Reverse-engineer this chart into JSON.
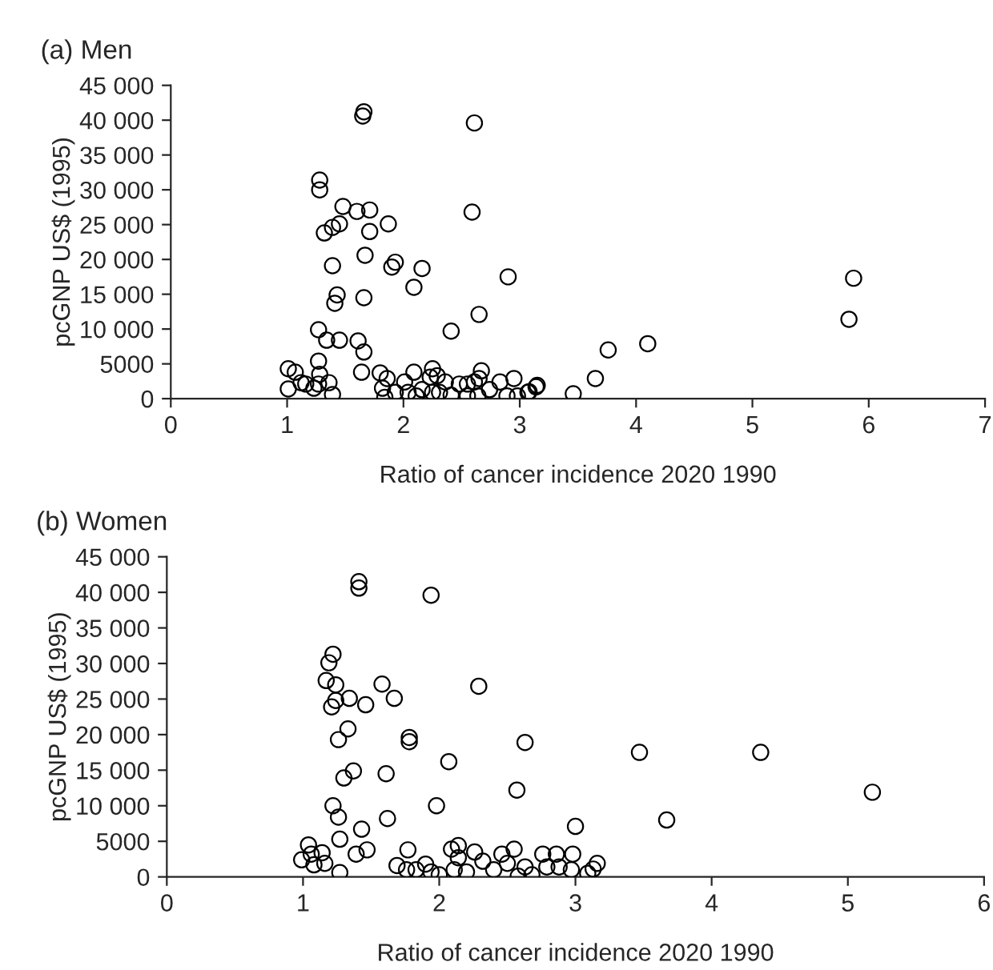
{
  "chart_data": [
    {
      "type": "scatter",
      "title": "(a) Men",
      "xlabel": "Ratio of cancer incidence 2020 1990",
      "ylabel": "pcGNP US$ (1995)",
      "marker": "circle",
      "grid": false,
      "xlim": [
        0,
        7
      ],
      "xticks": [
        0,
        1,
        2,
        3,
        4,
        5,
        6,
        7
      ],
      "ylim": [
        0,
        45000
      ],
      "yticks": [
        0,
        5000,
        {
          "value": 10000,
          "label": "10 000"
        },
        {
          "value": 15000,
          "label": "15 000"
        },
        {
          "value": 20000,
          "label": "20 000"
        },
        {
          "value": 25000,
          "label": "25 000"
        },
        {
          "value": 30000,
          "label": "30 000"
        },
        {
          "value": 35000,
          "label": "35 000"
        },
        {
          "value": 40000,
          "label": "40 000"
        },
        {
          "value": 45000,
          "label": "45 000"
        }
      ],
      "series": [
        {
          "color": "#000000",
          "x": [
            1.66,
            1.65,
            2.61,
            1.28,
            1.28,
            1.48,
            1.6,
            1.71,
            2.59,
            1.87,
            1.45,
            1.39,
            1.32,
            1.71,
            1.67,
            1.93,
            1.9,
            2.16,
            1.39,
            2.9,
            2.09,
            1.43,
            1.41,
            1.66,
            2.65,
            1.27,
            2.41,
            1.34,
            1.45,
            1.61,
            1.66,
            1.27,
            1.01,
            1.07,
            1.28,
            1.12,
            1.01,
            1.16,
            1.36,
            1.39,
            1.27,
            1.23,
            1.64,
            1.8,
            1.86,
            1.82,
            1.84,
            1.93,
            2.01,
            2.09,
            2.04,
            2.11,
            2.16,
            2.25,
            2.23,
            2.29,
            2.36,
            2.31,
            2.25,
            2.41,
            2.48,
            2.55,
            2.61,
            2.67,
            2.65,
            2.55,
            2.64,
            2.74,
            2.83,
            2.89,
            2.95,
            2.98,
            3.07,
            3.14,
            3.46,
            5.87,
            5.83,
            4.1,
            3.76,
            3.65,
            3.15,
            3.08
          ],
          "values": [
            41200,
            40600,
            39600,
            31400,
            30000,
            27600,
            26900,
            27100,
            26800,
            25100,
            25100,
            24600,
            23800,
            24000,
            20600,
            19600,
            18900,
            18700,
            19100,
            17500,
            16000,
            14900,
            13700,
            14500,
            12100,
            9900,
            9700,
            8400,
            8400,
            8300,
            6700,
            5400,
            4300,
            3800,
            3500,
            2300,
            1400,
            2100,
            2300,
            600,
            2100,
            1500,
            3800,
            3700,
            2900,
            1500,
            200,
            900,
            2400,
            3800,
            900,
            400,
            1300,
            4300,
            3100,
            3300,
            2400,
            900,
            900,
            500,
            2100,
            2100,
            2400,
            4000,
            2900,
            400,
            400,
            1300,
            2400,
            400,
            2900,
            400,
            900,
            1700,
            700,
            17300,
            11400,
            7900,
            7000,
            2900,
            1900,
            1000
          ]
        }
      ]
    },
    {
      "type": "scatter",
      "title": "(b) Women",
      "xlabel": "Ratio of cancer incidence 2020 1990",
      "ylabel": "pcGNP US$ (1995)",
      "marker": "circle",
      "grid": false,
      "xlim": [
        0,
        6
      ],
      "xticks": [
        0,
        1,
        2,
        3,
        4,
        5,
        6
      ],
      "ylim": [
        0,
        45000
      ],
      "yticks": [
        0,
        5000,
        {
          "value": 10000,
          "label": "10 000"
        },
        {
          "value": 15000,
          "label": "15 000"
        },
        {
          "value": 20000,
          "label": "20 000"
        },
        {
          "value": 25000,
          "label": "25 000"
        },
        {
          "value": 30000,
          "label": "30 000"
        },
        {
          "value": 35000,
          "label": "35 000"
        },
        {
          "value": 40000,
          "label": "40 000"
        },
        {
          "value": 45000,
          "label": "45 000"
        }
      ],
      "series": [
        {
          "color": "#000000",
          "x": [
            1.41,
            1.41,
            1.94,
            1.22,
            1.19,
            1.17,
            1.24,
            1.58,
            1.67,
            1.34,
            1.24,
            1.21,
            1.46,
            2.29,
            1.33,
            1.26,
            1.78,
            1.78,
            2.63,
            2.07,
            1.3,
            1.37,
            1.61,
            2.57,
            1.22,
            1.98,
            1.26,
            1.62,
            1.43,
            1.27,
            1.47,
            1.39,
            3.0,
            1.04,
            0.99,
            1.06,
            1.14,
            1.16,
            1.08,
            1.27,
            1.77,
            1.69,
            1.76,
            1.83,
            1.9,
            1.94,
            2.0,
            2.09,
            2.14,
            2.14,
            2.11,
            2.2,
            2.26,
            2.32,
            2.4,
            2.46,
            2.5,
            2.55,
            2.58,
            2.63,
            2.68,
            2.76,
            2.79,
            2.86,
            2.88,
            2.97,
            3.47,
            4.36,
            5.18,
            3.67,
            3.16,
            3.13,
            3.09,
            2.98
          ],
          "values": [
            41500,
            40600,
            39600,
            31300,
            30100,
            27600,
            27000,
            27100,
            25100,
            25100,
            24800,
            23900,
            24200,
            26800,
            20800,
            19300,
            19600,
            19000,
            18900,
            16200,
            13900,
            14900,
            14500,
            12200,
            10000,
            10000,
            8400,
            8200,
            6700,
            5300,
            3800,
            3200,
            7100,
            4500,
            2400,
            3200,
            3400,
            1900,
            1700,
            600,
            3800,
            1600,
            1000,
            1000,
            1800,
            700,
            300,
            3900,
            4400,
            2700,
            1000,
            700,
            3500,
            2200,
            1000,
            3200,
            1900,
            3900,
            100,
            1400,
            300,
            3200,
            1400,
            3200,
            1400,
            1000,
            17500,
            17500,
            11900,
            8000,
            1900,
            1100,
            500,
            3200
          ]
        }
      ]
    }
  ]
}
